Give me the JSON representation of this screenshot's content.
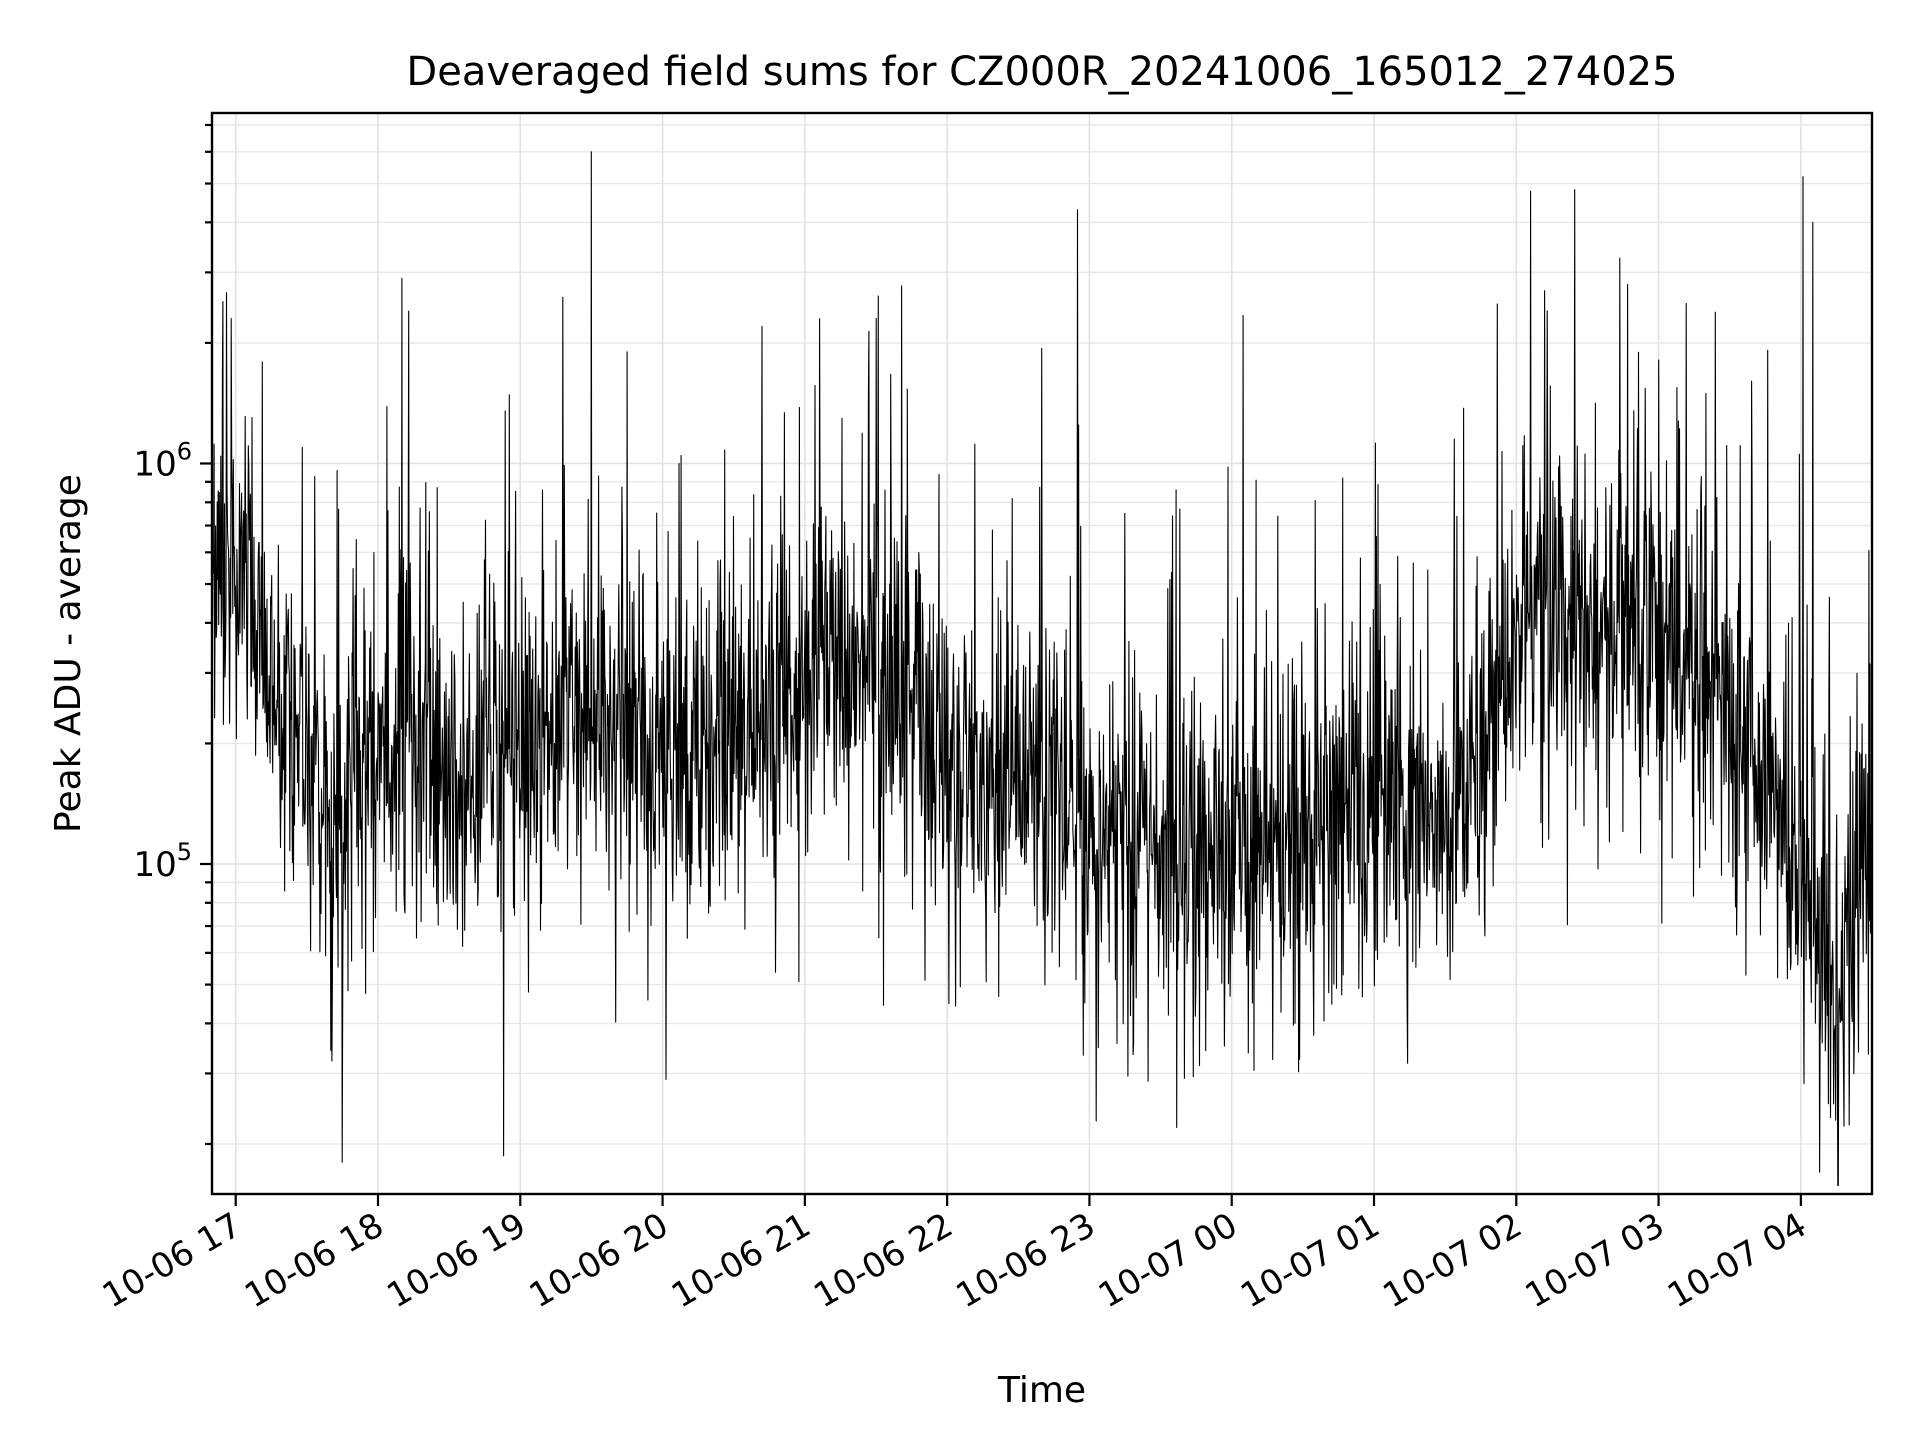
{
  "chart_data": {
    "type": "line",
    "title": "Deaveraged field sums for CZ000R_20241006_165012_274025",
    "xlabel": "Time",
    "ylabel": "Peak ADU - average",
    "y_scale": "log",
    "ylim": [
      15000,
      7500000
    ],
    "xlim": [
      "2024-10-06 16:50",
      "2024-10-07 04:30"
    ],
    "grid": true,
    "x_tick_labels": [
      "10-06 17",
      "10-06 18",
      "10-06 19",
      "10-06 20",
      "10-06 21",
      "10-06 22",
      "10-06 23",
      "10-07 00",
      "10-07 01",
      "10-07 02",
      "10-07 03",
      "10-07 04"
    ],
    "y_tick_labels": [
      {
        "value": 100000,
        "base": "10",
        "exp": "5"
      },
      {
        "value": 1000000,
        "base": "10",
        "exp": "6"
      }
    ],
    "series": [
      {
        "color": "#000000",
        "x": [
          "2024-10-06 16:50",
          "2024-10-06 16:58",
          "2024-10-06 17:05",
          "2024-10-06 17:15",
          "2024-10-06 17:30",
          "2024-10-06 17:40",
          "2024-10-06 17:45",
          "2024-10-06 18:00",
          "2024-10-06 18:15",
          "2024-10-06 18:30",
          "2024-10-06 18:45",
          "2024-10-06 19:00",
          "2024-10-06 19:20",
          "2024-10-06 19:35",
          "2024-10-06 19:50",
          "2024-10-06 20:10",
          "2024-10-06 20:30",
          "2024-10-06 20:45",
          "2024-10-06 21:00",
          "2024-10-06 21:15",
          "2024-10-06 21:30",
          "2024-10-06 21:45",
          "2024-10-06 22:00",
          "2024-10-06 22:15",
          "2024-10-06 22:30",
          "2024-10-06 22:50",
          "2024-10-06 23:10",
          "2024-10-06 23:30",
          "2024-10-06 23:50",
          "2024-10-07 00:10",
          "2024-10-07 00:30",
          "2024-10-07 00:50",
          "2024-10-07 01:10",
          "2024-10-07 01:30",
          "2024-10-07 01:50",
          "2024-10-07 02:05",
          "2024-10-07 02:20",
          "2024-10-07 02:40",
          "2024-10-07 03:00",
          "2024-10-07 03:20",
          "2024-10-07 03:40",
          "2024-10-07 04:00",
          "2024-10-07 04:15",
          "2024-10-07 04:30"
        ],
        "y": [
          400000,
          550000,
          600000,
          300000,
          180000,
          130000,
          120000,
          180000,
          220000,
          160000,
          180000,
          200000,
          230000,
          220000,
          180000,
          160000,
          200000,
          220000,
          300000,
          330000,
          320000,
          250000,
          170000,
          150000,
          180000,
          130000,
          110000,
          110000,
          110000,
          110000,
          120000,
          130000,
          140000,
          120000,
          250000,
          450000,
          380000,
          350000,
          330000,
          300000,
          180000,
          90000,
          50000,
          90000
        ]
      }
    ],
    "spikes": [
      {
        "x": "2024-10-06 16:58",
        "y": 2300000
      },
      {
        "x": "2024-10-06 17:45",
        "y": 18000
      },
      {
        "x": "2024-10-06 18:10",
        "y": 2900000
      },
      {
        "x": "2024-10-06 18:13",
        "y": 2400000
      },
      {
        "x": "2024-10-06 19:18",
        "y": 2600000
      },
      {
        "x": "2024-10-06 19:30",
        "y": 6000000
      },
      {
        "x": "2024-10-06 19:45",
        "y": 1900000
      },
      {
        "x": "2024-10-06 20:42",
        "y": 2200000
      },
      {
        "x": "2024-10-06 21:30",
        "y": 2300000
      },
      {
        "x": "2024-10-06 22:55",
        "y": 4300000
      },
      {
        "x": "2024-10-06 22:58",
        "y": 45000
      },
      {
        "x": "2024-10-07 02:12",
        "y": 2700000
      },
      {
        "x": "2024-10-07 02:47",
        "y": 2800000
      },
      {
        "x": "2024-10-07 04:01",
        "y": 5200000
      },
      {
        "x": "2024-10-07 04:05",
        "y": 4000000
      },
      {
        "x": "2024-10-07 04:08",
        "y": 17000
      }
    ]
  }
}
